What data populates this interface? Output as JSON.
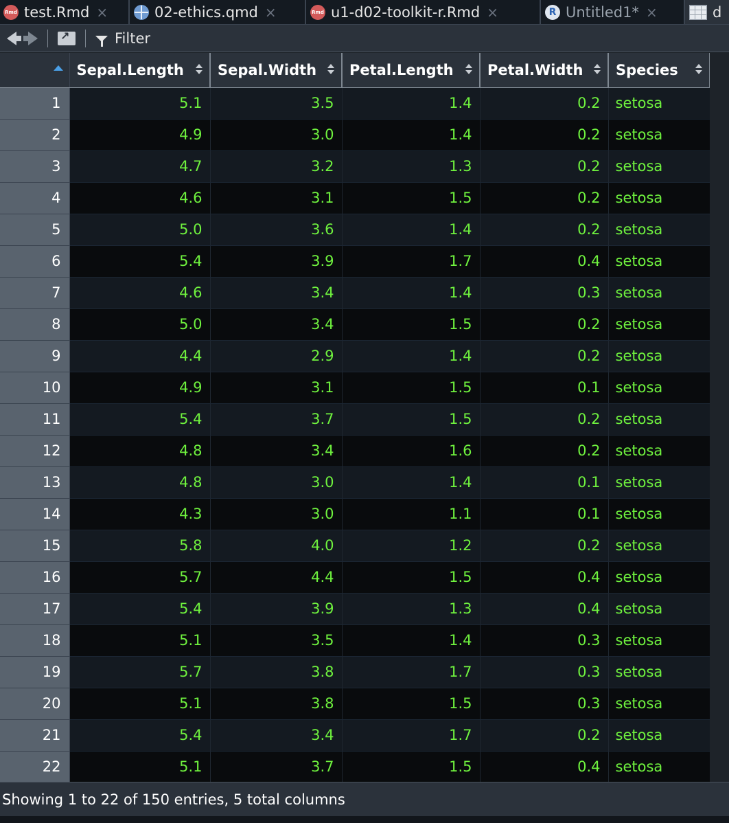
{
  "tabs": [
    {
      "label": "test.Rmd",
      "icon": "rmd-file-icon",
      "icon_text": "Rmd",
      "active": false
    },
    {
      "label": "02-ethics.qmd",
      "icon": "quarto-file-icon",
      "active": false
    },
    {
      "label": "u1-d02-toolkit-r.Rmd",
      "icon": "rmd-file-icon",
      "icon_text": "Rmd",
      "active": false
    },
    {
      "label": "Untitled1*",
      "icon": "r-script-icon",
      "icon_text": "R",
      "active": false
    },
    {
      "label": "d",
      "icon": "data-grid-icon",
      "active": true
    }
  ],
  "tab_close_glyph": "×",
  "toolbar": {
    "filter_label": "Filter"
  },
  "grid": {
    "columns": [
      "Sepal.Length",
      "Sepal.Width",
      "Petal.Length",
      "Petal.Width",
      "Species"
    ],
    "rows": [
      {
        "n": "1",
        "cells": [
          "5.1",
          "3.5",
          "1.4",
          "0.2",
          "setosa"
        ]
      },
      {
        "n": "2",
        "cells": [
          "4.9",
          "3.0",
          "1.4",
          "0.2",
          "setosa"
        ]
      },
      {
        "n": "3",
        "cells": [
          "4.7",
          "3.2",
          "1.3",
          "0.2",
          "setosa"
        ]
      },
      {
        "n": "4",
        "cells": [
          "4.6",
          "3.1",
          "1.5",
          "0.2",
          "setosa"
        ]
      },
      {
        "n": "5",
        "cells": [
          "5.0",
          "3.6",
          "1.4",
          "0.2",
          "setosa"
        ]
      },
      {
        "n": "6",
        "cells": [
          "5.4",
          "3.9",
          "1.7",
          "0.4",
          "setosa"
        ]
      },
      {
        "n": "7",
        "cells": [
          "4.6",
          "3.4",
          "1.4",
          "0.3",
          "setosa"
        ]
      },
      {
        "n": "8",
        "cells": [
          "5.0",
          "3.4",
          "1.5",
          "0.2",
          "setosa"
        ]
      },
      {
        "n": "9",
        "cells": [
          "4.4",
          "2.9",
          "1.4",
          "0.2",
          "setosa"
        ]
      },
      {
        "n": "10",
        "cells": [
          "4.9",
          "3.1",
          "1.5",
          "0.1",
          "setosa"
        ]
      },
      {
        "n": "11",
        "cells": [
          "5.4",
          "3.7",
          "1.5",
          "0.2",
          "setosa"
        ]
      },
      {
        "n": "12",
        "cells": [
          "4.8",
          "3.4",
          "1.6",
          "0.2",
          "setosa"
        ]
      },
      {
        "n": "13",
        "cells": [
          "4.8",
          "3.0",
          "1.4",
          "0.1",
          "setosa"
        ]
      },
      {
        "n": "14",
        "cells": [
          "4.3",
          "3.0",
          "1.1",
          "0.1",
          "setosa"
        ]
      },
      {
        "n": "15",
        "cells": [
          "5.8",
          "4.0",
          "1.2",
          "0.2",
          "setosa"
        ]
      },
      {
        "n": "16",
        "cells": [
          "5.7",
          "4.4",
          "1.5",
          "0.4",
          "setosa"
        ]
      },
      {
        "n": "17",
        "cells": [
          "5.4",
          "3.9",
          "1.3",
          "0.4",
          "setosa"
        ]
      },
      {
        "n": "18",
        "cells": [
          "5.1",
          "3.5",
          "1.4",
          "0.3",
          "setosa"
        ]
      },
      {
        "n": "19",
        "cells": [
          "5.7",
          "3.8",
          "1.7",
          "0.3",
          "setosa"
        ]
      },
      {
        "n": "20",
        "cells": [
          "5.1",
          "3.8",
          "1.5",
          "0.3",
          "setosa"
        ]
      },
      {
        "n": "21",
        "cells": [
          "5.4",
          "3.4",
          "1.7",
          "0.2",
          "setosa"
        ]
      },
      {
        "n": "22",
        "cells": [
          "5.1",
          "3.7",
          "1.5",
          "0.4",
          "setosa"
        ]
      }
    ]
  },
  "status": {
    "text": "Showing 1 to 22 of 150 entries, 5 total columns"
  },
  "colors": {
    "cell_text": "#6ff23e",
    "header_bg": "#2b323b",
    "row_number_bg": "#59636e",
    "sort_accent": "#4a9fe6"
  }
}
